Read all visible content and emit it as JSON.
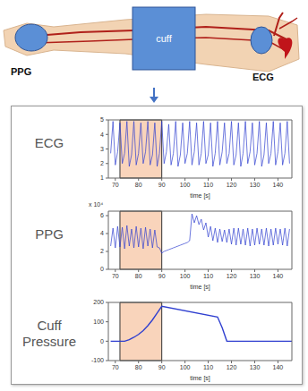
{
  "diagram": {
    "ppg_label": "PPG",
    "cuff_label": "cuff",
    "ecg_label": "ECG"
  },
  "chart_data": [
    {
      "type": "line",
      "title": "ECG",
      "x_label": "time [s]",
      "xlim": [
        67,
        146
      ],
      "xticks": [
        70,
        80,
        90,
        100,
        110,
        120,
        130,
        140
      ],
      "ylim": [
        1,
        5
      ],
      "yticks": [
        1,
        2,
        3,
        4,
        5
      ],
      "highlight_x": [
        72,
        90
      ],
      "color": "#2f3fd0",
      "x": [
        68,
        69,
        70,
        71,
        72,
        73,
        74,
        75,
        76,
        77,
        78,
        79,
        80,
        81,
        82,
        83,
        84,
        85,
        86,
        87,
        88,
        89,
        90,
        91,
        92,
        93,
        94,
        95,
        96,
        97,
        98,
        99,
        100,
        101,
        102,
        103,
        104,
        105,
        106,
        107,
        108,
        109,
        110,
        111,
        112,
        113,
        114,
        115,
        116,
        117,
        118,
        119,
        120,
        121,
        122,
        123,
        124,
        125,
        126,
        127,
        128,
        129,
        130,
        131,
        132,
        133,
        134,
        135,
        136,
        137,
        138,
        139,
        140,
        141,
        142,
        143,
        144,
        145
      ],
      "values": [
        2.7,
        4.9,
        1.9,
        2.8,
        4.8,
        2.0,
        2.7,
        4.9,
        1.8,
        2.6,
        4.9,
        1.9,
        2.7,
        4.8,
        2.0,
        2.8,
        4.9,
        1.9,
        2.6,
        4.8,
        1.8,
        2.7,
        4.9,
        2.0,
        2.8,
        4.7,
        1.9,
        2.7,
        4.9,
        1.8,
        2.6,
        4.8,
        2.0,
        2.7,
        4.9,
        1.9,
        2.8,
        4.8,
        1.9,
        2.7,
        4.9,
        2.0,
        2.6,
        4.8,
        1.8,
        2.7,
        4.9,
        1.9,
        2.8,
        4.8,
        2.0,
        2.7,
        4.9,
        1.9,
        2.6,
        4.8,
        1.8,
        2.7,
        4.9,
        2.0,
        2.8,
        4.8,
        1.9,
        2.7,
        4.9,
        1.8,
        2.6,
        4.8,
        2.0,
        2.7,
        4.9,
        1.9,
        2.8,
        4.8,
        1.9,
        2.7,
        4.9,
        2.0
      ]
    },
    {
      "type": "line",
      "title": "PPG",
      "annotations": [
        "x 10⁴"
      ],
      "x_label": "time [s]",
      "xlim": [
        67,
        146
      ],
      "xticks": [
        70,
        80,
        90,
        100,
        110,
        120,
        130,
        140
      ],
      "ylim": [
        0,
        6.5
      ],
      "yticks": [
        0,
        2,
        4,
        6
      ],
      "highlight_x": [
        72,
        90
      ],
      "color": "#2f3fd0",
      "x": [
        68,
        69,
        70,
        71,
        72,
        73,
        74,
        75,
        76,
        77,
        78,
        79,
        80,
        81,
        82,
        83,
        84,
        85,
        86,
        87,
        88,
        89,
        90,
        91,
        92,
        93,
        94,
        95,
        96,
        97,
        98,
        99,
        100,
        101,
        102,
        103,
        104,
        105,
        106,
        107,
        108,
        109,
        110,
        111,
        112,
        113,
        114,
        115,
        116,
        117,
        118,
        119,
        120,
        121,
        122,
        123,
        124,
        125,
        126,
        127,
        128,
        129,
        130,
        131,
        132,
        133,
        134,
        135,
        136,
        137,
        138,
        139,
        140,
        141,
        142,
        143,
        144,
        145
      ],
      "values": [
        2.6,
        4.6,
        2.4,
        4.8,
        2.5,
        4.7,
        2.3,
        4.9,
        2.6,
        4.5,
        2.4,
        4.8,
        2.5,
        4.6,
        2.3,
        4.7,
        2.6,
        4.5,
        2.4,
        4.4,
        2.5,
        2.4,
        1.8,
        2.0,
        2.1,
        2.2,
        2.3,
        2.4,
        2.5,
        2.6,
        2.7,
        2.8,
        2.9,
        3.0,
        3.2,
        6.2,
        5.2,
        6.0,
        5.0,
        5.6,
        4.4,
        5.2,
        3.6,
        4.8,
        3.2,
        4.6,
        3.0,
        4.5,
        3.1,
        4.4,
        3.0,
        4.5,
        2.8,
        4.6,
        2.7,
        4.6,
        2.8,
        4.5,
        2.7,
        4.6,
        2.6,
        4.5,
        2.7,
        4.6,
        2.8,
        4.5,
        2.7,
        4.6,
        2.6,
        4.5,
        2.7,
        4.6,
        2.8,
        4.5,
        2.7,
        4.6,
        2.6,
        4.5
      ]
    },
    {
      "type": "line",
      "title": "Cuff Pressure",
      "x_label": "time [s]",
      "xlim": [
        67,
        146
      ],
      "xticks": [
        70,
        80,
        90,
        100,
        110,
        120,
        130,
        140
      ],
      "ylim": [
        -100,
        200
      ],
      "yticks": [
        -100,
        0,
        100,
        200
      ],
      "highlight_x": [
        72,
        90
      ],
      "color": "#2f3fd0",
      "x": [
        68,
        74,
        76,
        78,
        80,
        82,
        84,
        86,
        88,
        90,
        114,
        116,
        118,
        146
      ],
      "values": [
        0,
        0,
        8,
        20,
        35,
        55,
        80,
        110,
        145,
        180,
        125,
        70,
        0,
        0
      ]
    }
  ]
}
